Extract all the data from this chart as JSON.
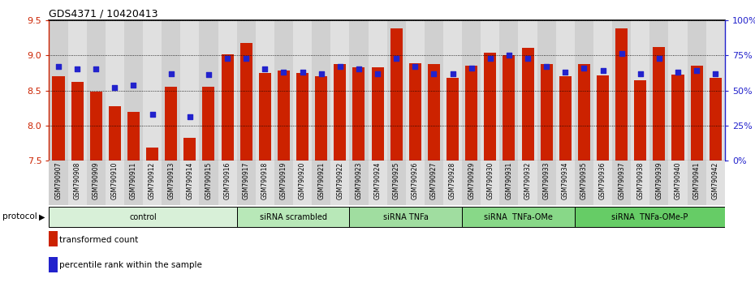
{
  "title": "GDS4371 / 10420413",
  "samples": [
    "GSM790907",
    "GSM790908",
    "GSM790909",
    "GSM790910",
    "GSM790911",
    "GSM790912",
    "GSM790913",
    "GSM790914",
    "GSM790915",
    "GSM790916",
    "GSM790917",
    "GSM790918",
    "GSM790919",
    "GSM790920",
    "GSM790921",
    "GSM790922",
    "GSM790923",
    "GSM790924",
    "GSM790925",
    "GSM790926",
    "GSM790927",
    "GSM790928",
    "GSM790929",
    "GSM790930",
    "GSM790931",
    "GSM790932",
    "GSM790933",
    "GSM790934",
    "GSM790935",
    "GSM790936",
    "GSM790937",
    "GSM790938",
    "GSM790939",
    "GSM790940",
    "GSM790941",
    "GSM790942"
  ],
  "transformed_count": [
    8.7,
    8.62,
    8.48,
    8.27,
    8.2,
    7.69,
    8.55,
    7.83,
    8.55,
    9.01,
    9.18,
    8.75,
    8.78,
    8.75,
    8.7,
    8.87,
    8.83,
    8.83,
    9.38,
    8.89,
    8.87,
    8.68,
    8.85,
    9.04,
    9.0,
    9.1,
    8.88,
    8.7,
    8.88,
    8.71,
    9.38,
    8.65,
    9.12,
    8.73,
    8.85,
    8.68
  ],
  "percentile": [
    67,
    65,
    65,
    52,
    54,
    33,
    62,
    31,
    61,
    73,
    73,
    65,
    63,
    63,
    62,
    67,
    65,
    62,
    73,
    67,
    62,
    62,
    66,
    73,
    75,
    73,
    67,
    63,
    66,
    64,
    76,
    62,
    73,
    63,
    64,
    62
  ],
  "ylim_left": [
    7.5,
    9.5
  ],
  "ylim_right": [
    0,
    100
  ],
  "yticks_left": [
    7.5,
    8.0,
    8.5,
    9.0,
    9.5
  ],
  "yticks_right": [
    0,
    25,
    50,
    75,
    100
  ],
  "ytick_labels_right": [
    "0%",
    "25%",
    "50%",
    "75%",
    "100%"
  ],
  "bar_color": "#CC2200",
  "dot_color": "#2222CC",
  "bar_bottom": 7.5,
  "groups": [
    {
      "label": "control",
      "start": 0,
      "end": 10,
      "color": "#d8f0d8"
    },
    {
      "label": "siRNA scrambled",
      "start": 10,
      "end": 16,
      "color": "#b8e8b8"
    },
    {
      "label": "siRNA TNFa",
      "start": 16,
      "end": 22,
      "color": "#a0dda0"
    },
    {
      "label": "siRNA  TNFa-OMe",
      "start": 22,
      "end": 28,
      "color": "#88d888"
    },
    {
      "label": "siRNA  TNFa-OMe-P",
      "start": 28,
      "end": 36,
      "color": "#66cc66"
    }
  ],
  "legend_transformed": "transformed count",
  "legend_percentile": "percentile rank within the sample",
  "protocol_label": "protocol"
}
